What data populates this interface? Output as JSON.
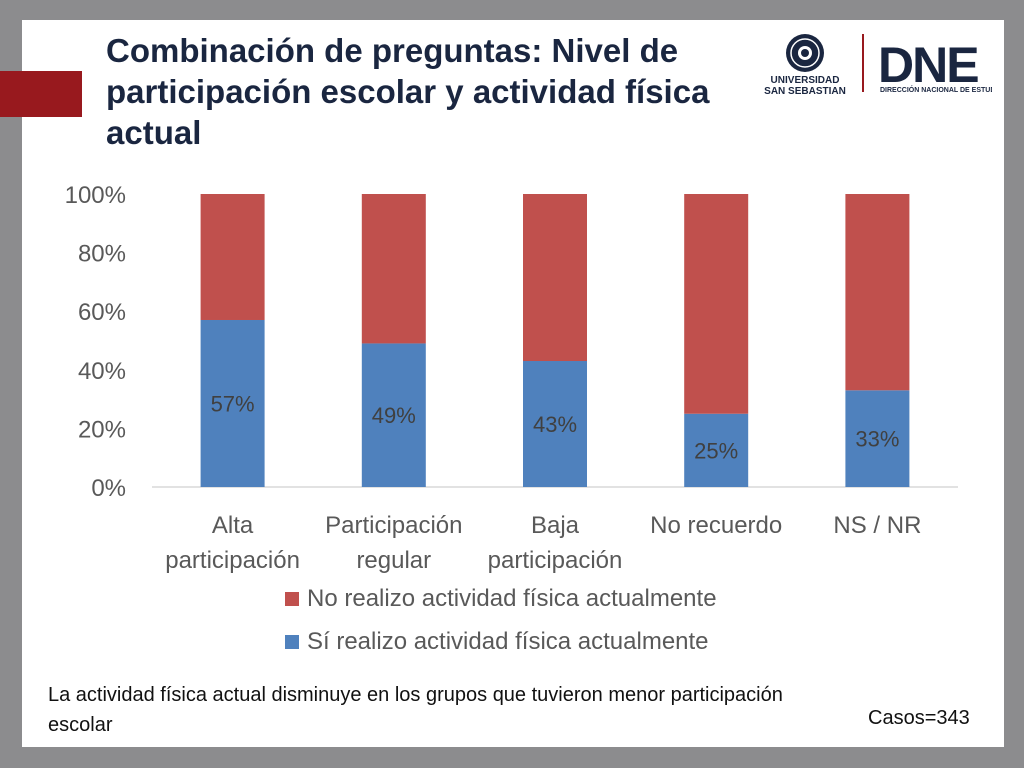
{
  "title": "Combinación de preguntas: Nivel de participación escolar y actividad física actual",
  "logo": {
    "university_line1": "UNIVERSIDAD",
    "university_line2": "SAN SEBASTIAN",
    "dne_mark": "DNE",
    "dne_subtitle": "DIRECCIÓN NACIONAL DE ESTUDIOS"
  },
  "chart_data": {
    "type": "bar",
    "stacked": "percent",
    "categories": [
      [
        "Alta",
        "participación"
      ],
      [
        "Participación",
        "regular"
      ],
      [
        "Baja",
        "participación"
      ],
      [
        "No recuerdo"
      ],
      [
        "NS / NR"
      ]
    ],
    "series": [
      {
        "name": "Sí realizo actividad física actualmente",
        "values": [
          57,
          49,
          43,
          25,
          33
        ],
        "color": "#4f81bd",
        "labels": [
          "57%",
          "49%",
          "43%",
          "25%",
          "33%"
        ]
      },
      {
        "name": "No realizo actividad física actualmente",
        "values": [
          43,
          51,
          57,
          75,
          67
        ],
        "color": "#c0504d"
      }
    ],
    "legend_order": [
      "No realizo actividad física actualmente",
      "Sí realizo actividad física actualmente"
    ],
    "yticks": [
      "0%",
      "20%",
      "40%",
      "60%",
      "80%",
      "100%"
    ],
    "ylim": [
      0,
      100
    ],
    "legend": "bottom"
  },
  "note": "La actividad física actual disminuye en los grupos que tuvieron menor participación escolar",
  "cases": "Casos=343"
}
